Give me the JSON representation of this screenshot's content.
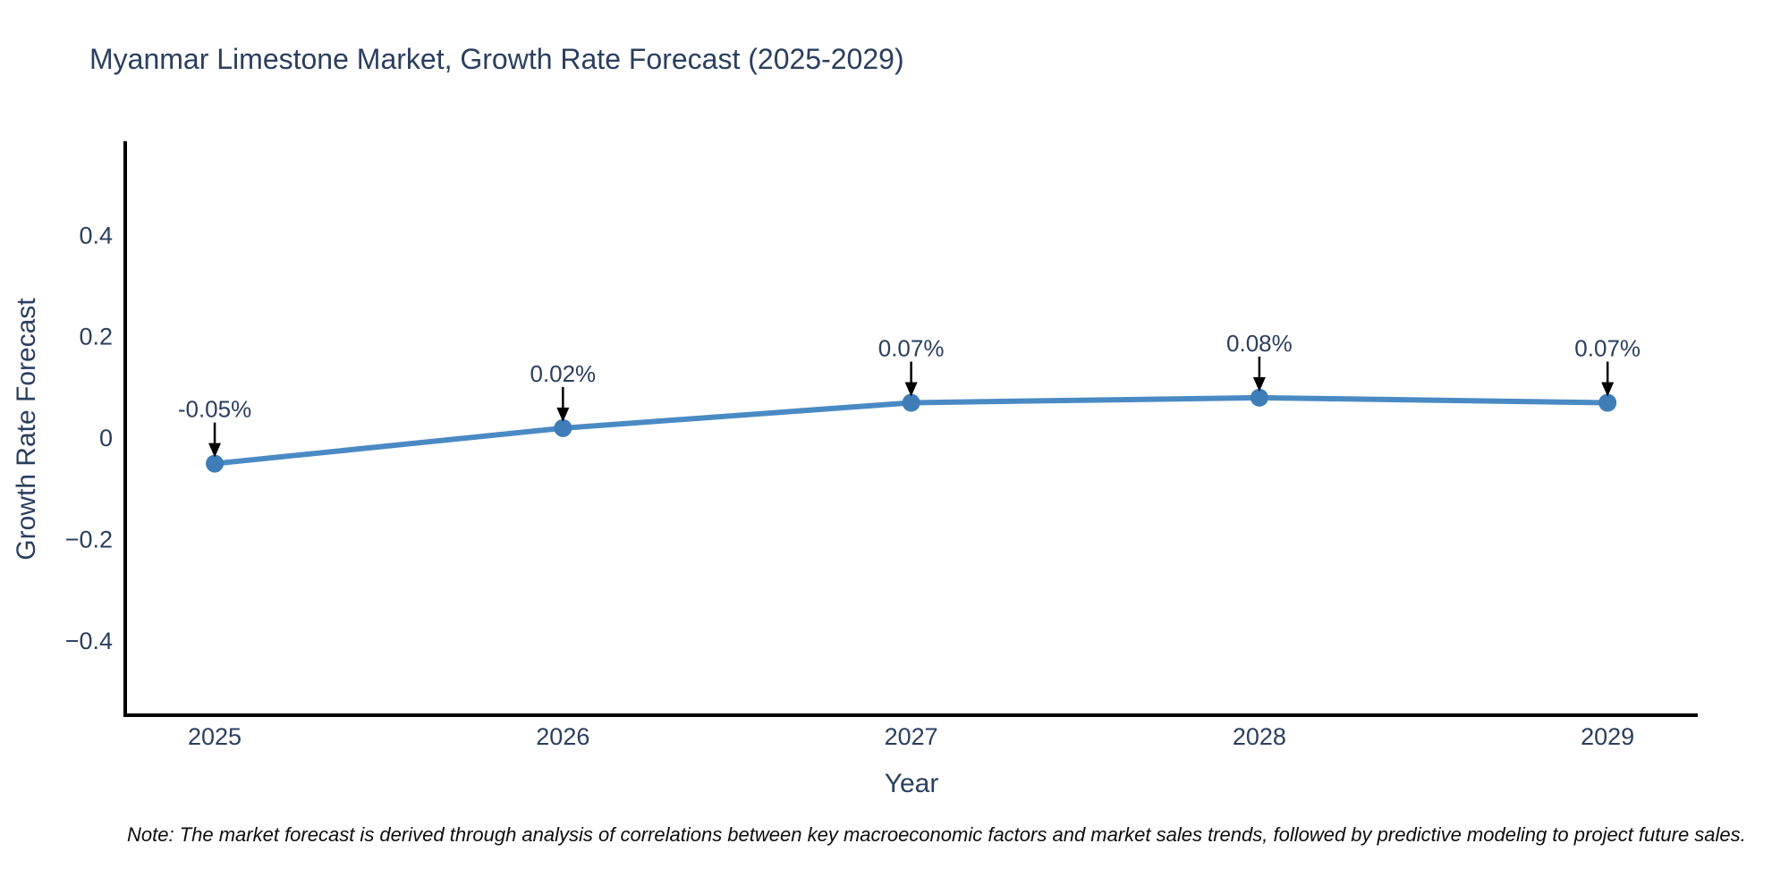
{
  "page": {
    "background": "#ffffff"
  },
  "chart_data": {
    "type": "line",
    "title": "Myanmar Limestone Market, Growth Rate Forecast (2025-2029)",
    "xlabel": "Year",
    "ylabel": "Growth Rate Forecast",
    "x": [
      2025,
      2026,
      2027,
      2028,
      2029
    ],
    "series": [
      {
        "name": "Growth Rate Forecast",
        "values": [
          -0.05,
          0.02,
          0.07,
          0.08,
          0.07
        ],
        "point_labels": [
          "-0.05%",
          "0.02%",
          "0.07%",
          "0.08%",
          "0.07%"
        ]
      }
    ],
    "x_tick_labels": [
      "2025",
      "2026",
      "2027",
      "2028",
      "2029"
    ],
    "y_ticks": [
      0.4,
      0.2,
      0,
      -0.2,
      -0.4
    ],
    "y_tick_labels": [
      "0.4",
      "0.2",
      "0",
      "−0.2",
      "−0.4"
    ],
    "xlim": [
      2024.743,
      2029.259
    ],
    "ylim": [
      -0.546,
      0.582
    ],
    "grid": false,
    "legend_position": "none",
    "annotations_have_arrows": true,
    "colors": {
      "line": "#4a8ac4",
      "marker": "#3f7db8",
      "axis": "#000000",
      "arrow": "#000000",
      "text": "#2a3f5f"
    }
  },
  "note": {
    "text": "Note: The market forecast is derived through analysis of correlations between key macroeconomic factors and market sales trends, followed by predictive modeling to project future sales."
  }
}
